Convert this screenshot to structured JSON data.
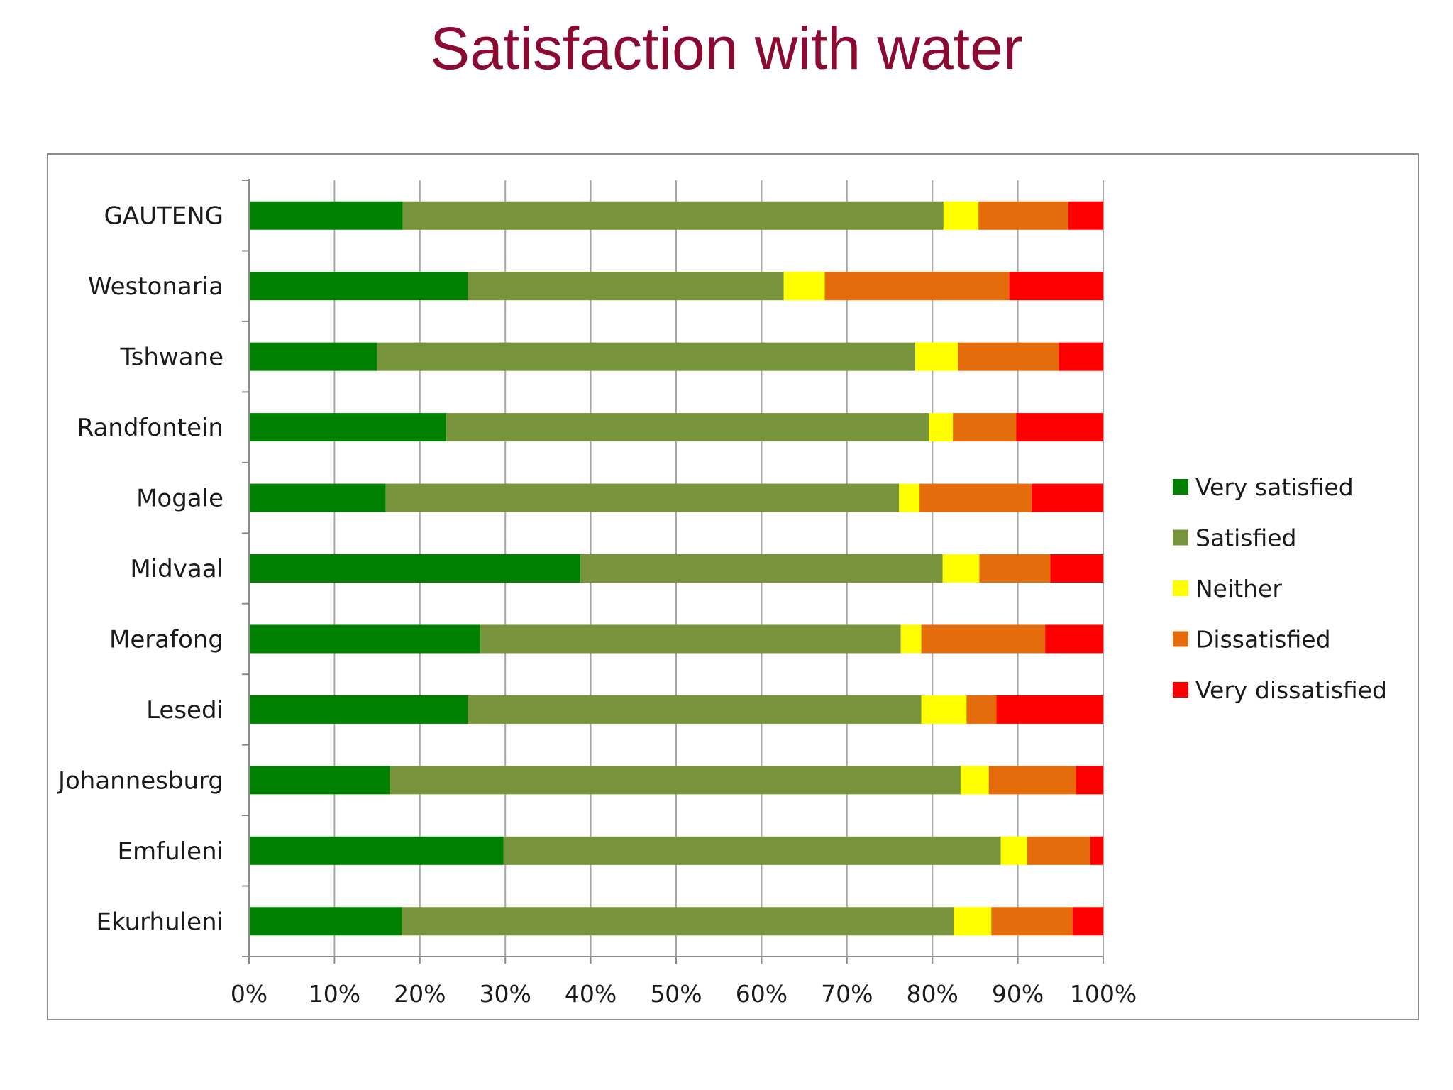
{
  "chart_data": {
    "type": "bar",
    "orientation": "horizontal",
    "stacked": "percent",
    "title": "Satisfaction with water",
    "categories": [
      "GAUTENG",
      "Westonaria",
      "Tshwane",
      "Randfontein",
      "Mogale",
      "Midvaal",
      "Merafong",
      "Lesedi",
      "Johannesburg",
      "Emfuleni",
      "Ekurhuleni"
    ],
    "series": [
      {
        "name": "Very satisfied",
        "color": "#008000",
        "values": [
          18,
          25.6,
          15,
          23.1,
          16,
          38.8,
          27.1,
          25.6,
          16.5,
          29.8,
          17.9
        ]
      },
      {
        "name": "Satisfied",
        "color": "#77933c",
        "values": [
          63.3,
          37,
          63,
          56.5,
          60.1,
          42.4,
          49.2,
          53.1,
          66.8,
          58.2,
          64.6
        ]
      },
      {
        "name": "Neither",
        "color": "#ffff00",
        "values": [
          4.1,
          4.8,
          5,
          2.8,
          2.4,
          4.3,
          2.4,
          5.3,
          3.3,
          3.1,
          4.4
        ]
      },
      {
        "name": "Dissatisfied",
        "color": "#e46c0a",
        "values": [
          10.5,
          21.6,
          11.8,
          7.4,
          13.1,
          8.3,
          14.5,
          3.5,
          10.2,
          7.4,
          9.5
        ]
      },
      {
        "name": "Very dissatisfied",
        "color": "#ff0000",
        "values": [
          4.1,
          11,
          5.2,
          10.2,
          8.4,
          6.2,
          6.8,
          12.5,
          3.2,
          1.5,
          3.6
        ]
      }
    ],
    "xlim": [
      0,
      100
    ],
    "x_ticks": [
      0,
      10,
      20,
      30,
      40,
      50,
      60,
      70,
      80,
      90,
      100
    ],
    "x_tick_labels": [
      "0%",
      "10%",
      "20%",
      "30%",
      "40%",
      "50%",
      "60%",
      "70%",
      "80%",
      "90%",
      "100%"
    ],
    "grid": true,
    "legend_position": "right",
    "colors": {
      "title": "#8b0a32",
      "grid": "#a6a6a6",
      "axis": "#8c8c8c"
    }
  }
}
